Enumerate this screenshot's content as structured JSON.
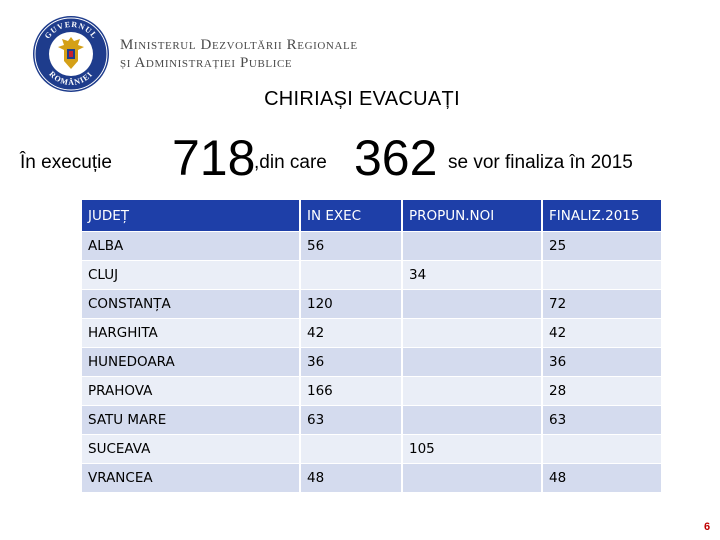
{
  "header": {
    "seal_text": "GUVERNUL ROMÂNIEI",
    "ministry_line1": "Ministerul Dezvoltării Regionale",
    "ministry_line2": "și Administrației Publice",
    "colors": {
      "seal_blue": "#1e3c8c",
      "seal_gold": "#d4a017"
    }
  },
  "title": "CHIRIAȘI EVACUAȚI",
  "summary": {
    "prefix": "În execuție",
    "count1": "718",
    "middle": ",din care",
    "count2": "362",
    "suffix": "se vor finaliza în 2015"
  },
  "table": {
    "headers": [
      "JUDEȚ",
      "IN EXEC",
      "PROPUN.NOI",
      "FINALIZ.2015"
    ],
    "rows": [
      {
        "judet": "ALBA",
        "in_exec": "56",
        "propun_noi": "",
        "finaliz": "25"
      },
      {
        "judet": "CLUJ",
        "span_value": "34"
      },
      {
        "judet": "CONSTANȚA",
        "in_exec": "120",
        "propun_noi": "",
        "finaliz": "72"
      },
      {
        "judet": "HARGHITA",
        "in_exec": "42",
        "propun_noi": "",
        "finaliz": "42"
      },
      {
        "judet": "HUNEDOARA",
        "in_exec": "36",
        "propun_noi": "",
        "finaliz": "36"
      },
      {
        "judet": "PRAHOVA",
        "in_exec": "166",
        "propun_noi": "",
        "finaliz": "28"
      },
      {
        "judet": "SATU MARE",
        "in_exec": "63",
        "propun_noi": "",
        "finaliz": "63"
      },
      {
        "judet": "SUCEAVA",
        "span_value": "105"
      },
      {
        "judet": "VRANCEA",
        "in_exec": "48",
        "propun_noi": "",
        "finaliz": "48"
      }
    ],
    "colors": {
      "header_bg": "#1e3fa8",
      "row_dark": "#d4dbee",
      "row_light": "#eaeef7"
    }
  },
  "page_number": "6"
}
